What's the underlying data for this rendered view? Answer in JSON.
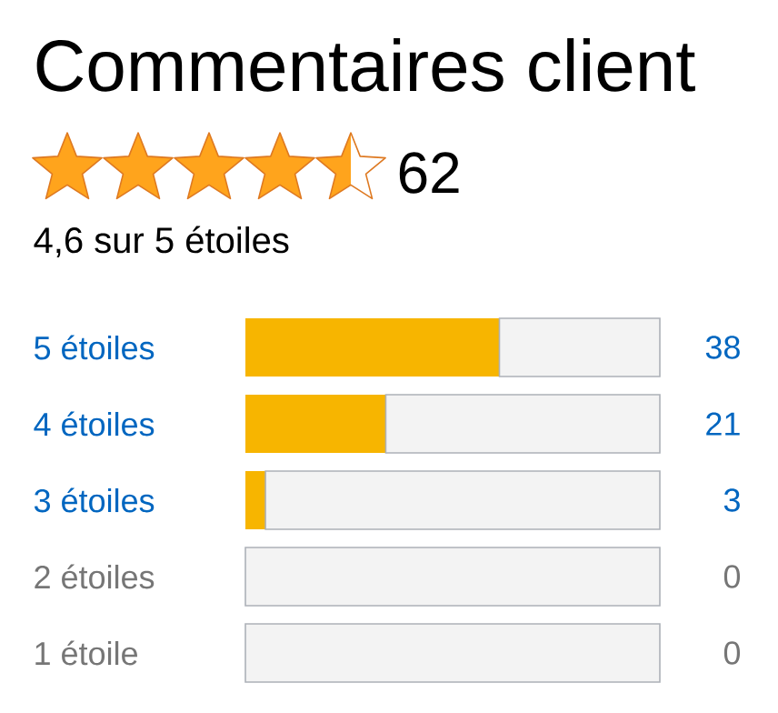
{
  "chart_data": {
    "type": "bar",
    "orientation": "horizontal",
    "stacked": true,
    "title": "Commentaires client",
    "subtitle": "4,6 sur 5 étoiles",
    "annotations": [
      "62"
    ],
    "categories": [
      "5 étoiles",
      "4 étoiles",
      "3 étoiles",
      "2 étoiles",
      "1 étoile"
    ],
    "series": [
      {
        "color": "#f7b500",
        "values": [
          38,
          21,
          3,
          0,
          0
        ],
        "value_labels": [
          "38",
          "21",
          "3",
          "0",
          "0"
        ]
      },
      {
        "color": "#f3f3f3",
        "values": [
          24,
          41,
          59,
          62,
          62
        ]
      }
    ],
    "xlim": [
      0,
      62
    ],
    "tick_labels": "y"
  }
}
